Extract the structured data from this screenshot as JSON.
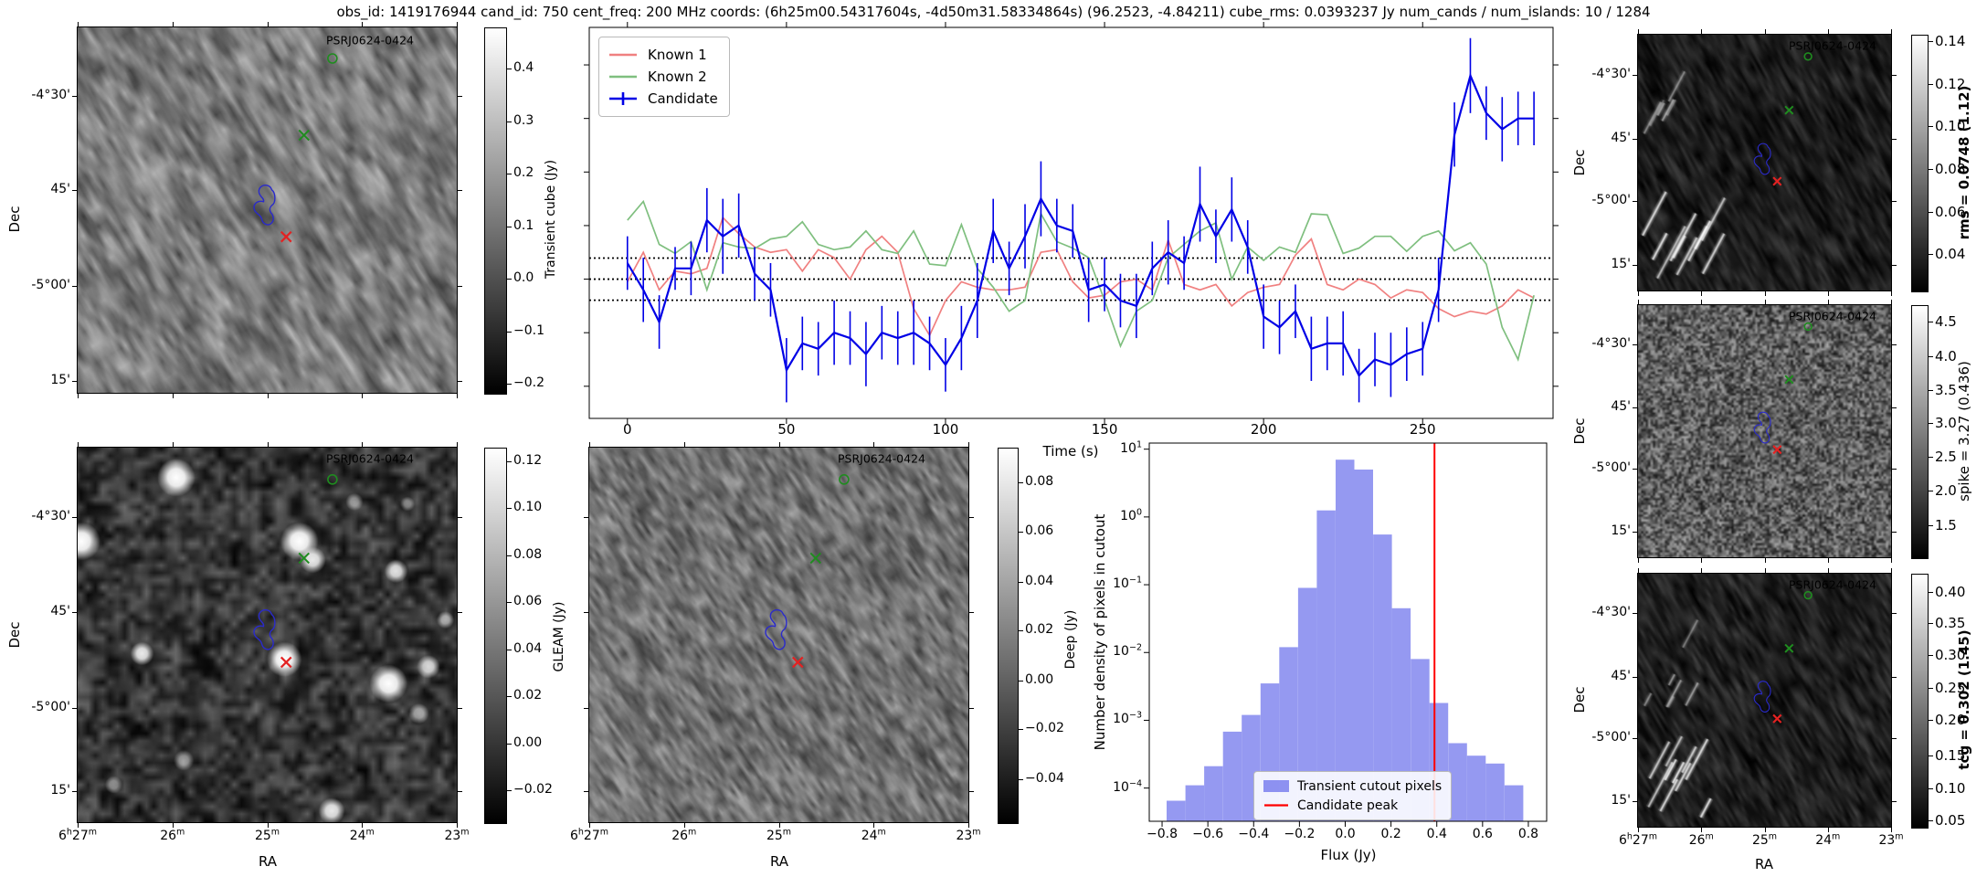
{
  "title": "obs_id: 1419176944 cand_id: 750 cent_freq: 200 MHz coords: (6h25m00.54317604s, -4d50m31.58334864s) (96.2523, -4.84211) cube_rms: 0.0393237 Jy num_cands / num_islands: 10 / 1284",
  "source_label": "PSRJ0624-0424",
  "colors": {
    "known1": "#f08080",
    "known2": "#7fbf7f",
    "candidate": "#0000e6",
    "annotation_green": "#1f8c1f",
    "marker_red": "#e32222",
    "contour_blue": "#2a2acc",
    "hist_fill": "#7b80ee",
    "hist_line": "#ff0000",
    "threshold_line": "#000000"
  },
  "axes": {
    "dec_label": "Dec",
    "ra_label": "RA",
    "dec_ticks": [
      "-4°30'",
      "45'",
      "-5°00'",
      "15'"
    ],
    "ra_ticks": [
      "6h27m",
      "26m",
      "25m",
      "24m",
      "23m"
    ]
  },
  "colorbars": {
    "transient_cube": {
      "label": "Transient cube (Jy)",
      "ticks": [
        "0.4",
        "0.3",
        "0.2",
        "0.1",
        "0.0",
        "−0.1",
        "−0.2"
      ],
      "bold": false
    },
    "gleam": {
      "label": "GLEAM (Jy)",
      "ticks": [
        "0.12",
        "0.10",
        "0.08",
        "0.06",
        "0.04",
        "0.02",
        "0.00",
        "−0.02"
      ],
      "bold": false
    },
    "deep": {
      "label": "Deep (Jy)",
      "ticks": [
        "0.08",
        "0.06",
        "0.04",
        "0.02",
        "0.00",
        "−0.02",
        "−0.04"
      ],
      "bold": false
    },
    "rms": {
      "label": "rms = 0.0748 (1.12)",
      "ticks": [
        "0.14",
        "0.12",
        "0.10",
        "0.08",
        "0.06",
        "0.04"
      ],
      "bold": true
    },
    "spike": {
      "label": "spike = 3.27 (0.436)",
      "ticks": [
        "4.5",
        "4.0",
        "3.5",
        "3.0",
        "2.5",
        "2.0",
        "1.5"
      ],
      "bold": false
    },
    "tcg": {
      "label": "tcg = 0.302 (1.45)",
      "ticks": [
        "0.40",
        "0.35",
        "0.30",
        "0.25",
        "0.20",
        "0.15",
        "0.10",
        "0.05"
      ],
      "bold": true
    }
  },
  "chart_data": [
    {
      "type": "line",
      "title": "",
      "xlabel": "Time (s)",
      "ylabel": "",
      "xlim": [
        -12,
        291
      ],
      "ylim": [
        -0.26,
        0.47
      ],
      "x_ticks": [
        0,
        50,
        100,
        150,
        200,
        250
      ],
      "y_grid_ticks": [
        0.4,
        0.3,
        0.2,
        0.1,
        0.0,
        -0.1,
        -0.2
      ],
      "threshold_lines": [
        0.0393,
        0.0,
        -0.0393
      ],
      "legend_position": "upper left",
      "x": [
        0,
        5,
        10,
        15,
        20,
        25,
        30,
        35,
        40,
        45,
        50,
        55,
        60,
        65,
        70,
        75,
        80,
        85,
        90,
        95,
        100,
        105,
        110,
        115,
        120,
        125,
        130,
        135,
        140,
        145,
        150,
        155,
        160,
        165,
        170,
        175,
        180,
        185,
        190,
        195,
        200,
        205,
        210,
        215,
        220,
        225,
        230,
        235,
        240,
        245,
        250,
        255,
        260,
        265,
        270,
        275,
        280,
        285
      ],
      "series": [
        {
          "name": "Known 1",
          "values": [
            -0.005,
            0.05,
            -0.02,
            0.015,
            0.01,
            0.02,
            0.115,
            0.085,
            0.06,
            0.05,
            0.055,
            0.015,
            0.055,
            0.04,
            0.0,
            0.055,
            0.08,
            0.05,
            -0.055,
            -0.105,
            -0.04,
            -0.005,
            -0.015,
            -0.02,
            -0.02,
            -0.015,
            0.05,
            0.055,
            -0.005,
            -0.035,
            -0.03,
            -0.005,
            0.0,
            -0.02,
            0.073,
            -0.01,
            -0.02,
            -0.01,
            -0.05,
            -0.025,
            -0.015,
            -0.01,
            0.045,
            0.075,
            -0.01,
            -0.02,
            0.0,
            -0.01,
            -0.035,
            -0.02,
            -0.025,
            -0.055,
            -0.07,
            -0.06,
            -0.065,
            -0.05,
            -0.02,
            -0.035
          ]
        },
        {
          "name": "Known 2",
          "values": [
            0.11,
            0.145,
            0.065,
            0.048,
            0.07,
            -0.02,
            0.068,
            0.06,
            0.057,
            0.075,
            0.08,
            0.107,
            0.065,
            0.055,
            0.06,
            0.09,
            0.055,
            0.048,
            0.09,
            0.028,
            0.025,
            0.102,
            0.02,
            -0.015,
            -0.06,
            -0.04,
            0.122,
            0.07,
            0.058,
            0.04,
            -0.04,
            -0.125,
            -0.06,
            -0.04,
            0.04,
            0.065,
            0.09,
            0.105,
            0.0,
            0.06,
            0.035,
            0.06,
            0.05,
            0.122,
            0.12,
            0.048,
            0.058,
            0.08,
            0.08,
            0.052,
            0.08,
            0.09,
            0.053,
            0.068,
            0.028,
            -0.09,
            -0.15,
            -0.03
          ]
        },
        {
          "name": "Candidate",
          "values": [
            0.03,
            -0.02,
            -0.08,
            0.02,
            0.02,
            0.11,
            0.08,
            0.1,
            0.01,
            -0.02,
            -0.17,
            -0.12,
            -0.13,
            -0.1,
            -0.11,
            -0.14,
            -0.1,
            -0.11,
            -0.1,
            -0.12,
            -0.16,
            -0.11,
            -0.04,
            0.09,
            0.02,
            0.08,
            0.15,
            0.1,
            0.09,
            -0.02,
            -0.01,
            -0.04,
            -0.05,
            0.02,
            0.05,
            0.03,
            0.14,
            0.08,
            0.13,
            0.06,
            -0.07,
            -0.09,
            -0.06,
            -0.13,
            -0.12,
            -0.12,
            -0.18,
            -0.15,
            -0.16,
            -0.14,
            -0.13,
            -0.02,
            0.27,
            0.38,
            0.31,
            0.28,
            0.3,
            0.3
          ],
          "errors": [
            0.05,
            0.06,
            0.05,
            0.04,
            0.05,
            0.06,
            0.07,
            0.06,
            0.05,
            0.05,
            0.06,
            0.05,
            0.05,
            0.06,
            0.05,
            0.06,
            0.05,
            0.05,
            0.06,
            0.05,
            0.05,
            0.06,
            0.07,
            0.06,
            0.05,
            0.06,
            0.07,
            0.05,
            0.05,
            0.06,
            0.05,
            0.05,
            0.06,
            0.05,
            0.06,
            0.05,
            0.07,
            0.05,
            0.06,
            0.05,
            0.06,
            0.05,
            0.05,
            0.06,
            0.05,
            0.06,
            0.05,
            0.05,
            0.06,
            0.05,
            0.05,
            0.06,
            0.06,
            0.07,
            0.05,
            0.06,
            0.05,
            0.05
          ]
        }
      ]
    },
    {
      "type": "bar",
      "histogram": true,
      "xlabel": "Flux (Jy)",
      "ylabel": "Number density of pixels in cutout",
      "xlim": [
        -0.856,
        0.88
      ],
      "ylim_log10": [
        -4.49,
        1.09
      ],
      "x_ticks": [
        -0.8,
        -0.6,
        -0.4,
        -0.2,
        0.0,
        0.2,
        0.4,
        0.6,
        0.8
      ],
      "y_tick_exponents": [
        1,
        0,
        -1,
        -2,
        -3,
        -4
      ],
      "bin_edges": [
        -0.78,
        -0.698,
        -0.616,
        -0.534,
        -0.452,
        -0.37,
        -0.288,
        -0.206,
        -0.124,
        -0.042,
        0.04,
        0.122,
        0.204,
        0.286,
        0.368,
        0.45,
        0.532,
        0.614,
        0.696,
        0.778
      ],
      "values": [
        6.5e-05,
        0.00011,
        0.00021,
        0.00068,
        0.0012,
        0.0035,
        0.012,
        0.09,
        1.25,
        7.0,
        5.0,
        0.55,
        0.045,
        0.008,
        0.0018,
        0.00046,
        0.0003,
        0.00023,
        0.00011
      ],
      "candidate_peak": 0.39,
      "legend": [
        "Transient cutout pixels",
        "Candidate peak"
      ]
    }
  ]
}
